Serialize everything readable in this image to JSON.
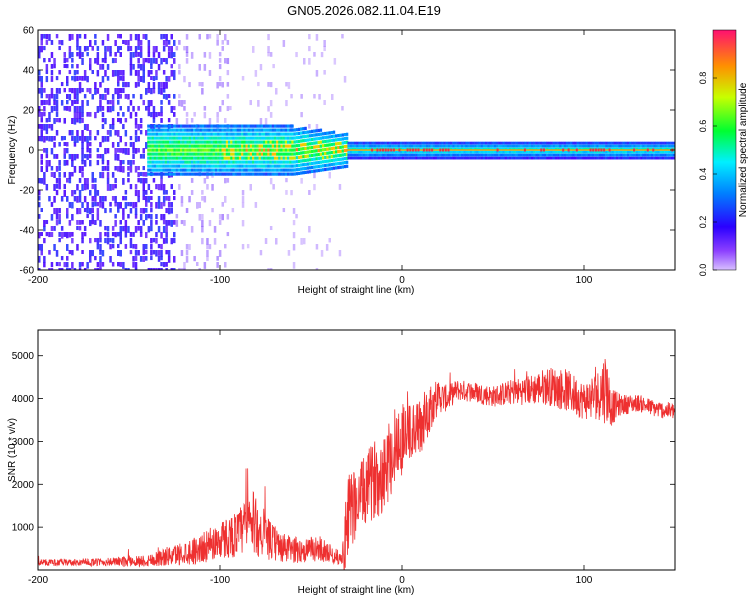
{
  "title": "GN05.2026.082.11.04.E19",
  "colors": {
    "snr_line": "#ee3030",
    "spec_floor": "#6a1ee6",
    "spec_ridge": "#e8304a"
  },
  "chart_data": [
    {
      "type": "heatmap",
      "name": "spectrogram",
      "xlabel": "Height of straight line (km)",
      "ylabel": "Frequency (Hz)",
      "xlim": [
        -200,
        150
      ],
      "ylim": [
        -60,
        60
      ],
      "xticks": [
        -200,
        -100,
        0,
        100
      ],
      "yticks": [
        60,
        40,
        20,
        0,
        -20,
        -40,
        -60
      ],
      "colorbar": {
        "label": "Normalized spectral amplitude",
        "range": [
          0.0,
          1.0
        ],
        "ticks": [
          0.0,
          0.2,
          0.4,
          0.6,
          0.8
        ],
        "colormap": [
          "#c8a8ff",
          "#4a00ff",
          "#0070ff",
          "#00e0ff",
          "#00ff40",
          "#b0ff00",
          "#ffc000",
          "#ff2040"
        ]
      },
      "bands": [
        {
          "x_from": -200,
          "x_to": -125,
          "half_width_hz": 60,
          "level": 0.12,
          "description_level": "noise"
        },
        {
          "x_from": -125,
          "x_to": -95,
          "half_width_hz": 60,
          "level": 0.05
        },
        {
          "x_from": -90,
          "x_to": -30,
          "half_width_hz": 60,
          "level": 0.03
        },
        {
          "x_from": -140,
          "x_to": -30,
          "half_width_hz": 12,
          "level": 0.3
        },
        {
          "x_from": -30,
          "x_to": 150,
          "half_width_hz": 4,
          "level": 0.25
        }
      ],
      "ridge": {
        "x_from": -30,
        "x_to": 150,
        "freq_hz": 0,
        "level": 0.95
      }
    },
    {
      "type": "line",
      "name": "snr",
      "xlabel": "Height of straight line (km)",
      "ylabel": "SNR (10 * v/v)",
      "xlim": [
        -200,
        150
      ],
      "ylim": [
        0,
        5600
      ],
      "xticks": [
        -200,
        -100,
        0,
        100
      ],
      "yticks": [
        1000,
        2000,
        3000,
        4000,
        5000
      ],
      "series": [
        {
          "name": "SNR",
          "x": [
            -200,
            -180,
            -160,
            -140,
            -125,
            -110,
            -100,
            -90,
            -83,
            -75,
            -65,
            -55,
            -45,
            -38,
            -33,
            -30,
            -27,
            -22,
            -18,
            -15,
            -12,
            -8,
            -5,
            0,
            5,
            10,
            15,
            20,
            25,
            30,
            40,
            50,
            60,
            70,
            80,
            90,
            100,
            108,
            112,
            115,
            120,
            130,
            140,
            150
          ],
          "values": [
            180,
            170,
            190,
            220,
            350,
            500,
            700,
            850,
            1150,
            750,
            500,
            450,
            500,
            350,
            250,
            950,
            1500,
            1750,
            1950,
            2150,
            2250,
            2500,
            2800,
            3100,
            3200,
            3300,
            3800,
            4050,
            4000,
            4200,
            4150,
            4050,
            4150,
            4200,
            4300,
            4200,
            3950,
            4100,
            4300,
            3800,
            3850,
            3900,
            3750,
            3700
          ],
          "amplitude": [
            80,
            80,
            100,
            150,
            250,
            350,
            450,
            550,
            800,
            500,
            350,
            300,
            300,
            200,
            150,
            1200,
            900,
            800,
            900,
            900,
            1000,
            1000,
            1000,
            900,
            700,
            700,
            600,
            400,
            300,
            250,
            250,
            250,
            300,
            350,
            450,
            500,
            450,
            600,
            900,
            450,
            250,
            200,
            200,
            200
          ]
        }
      ]
    }
  ]
}
